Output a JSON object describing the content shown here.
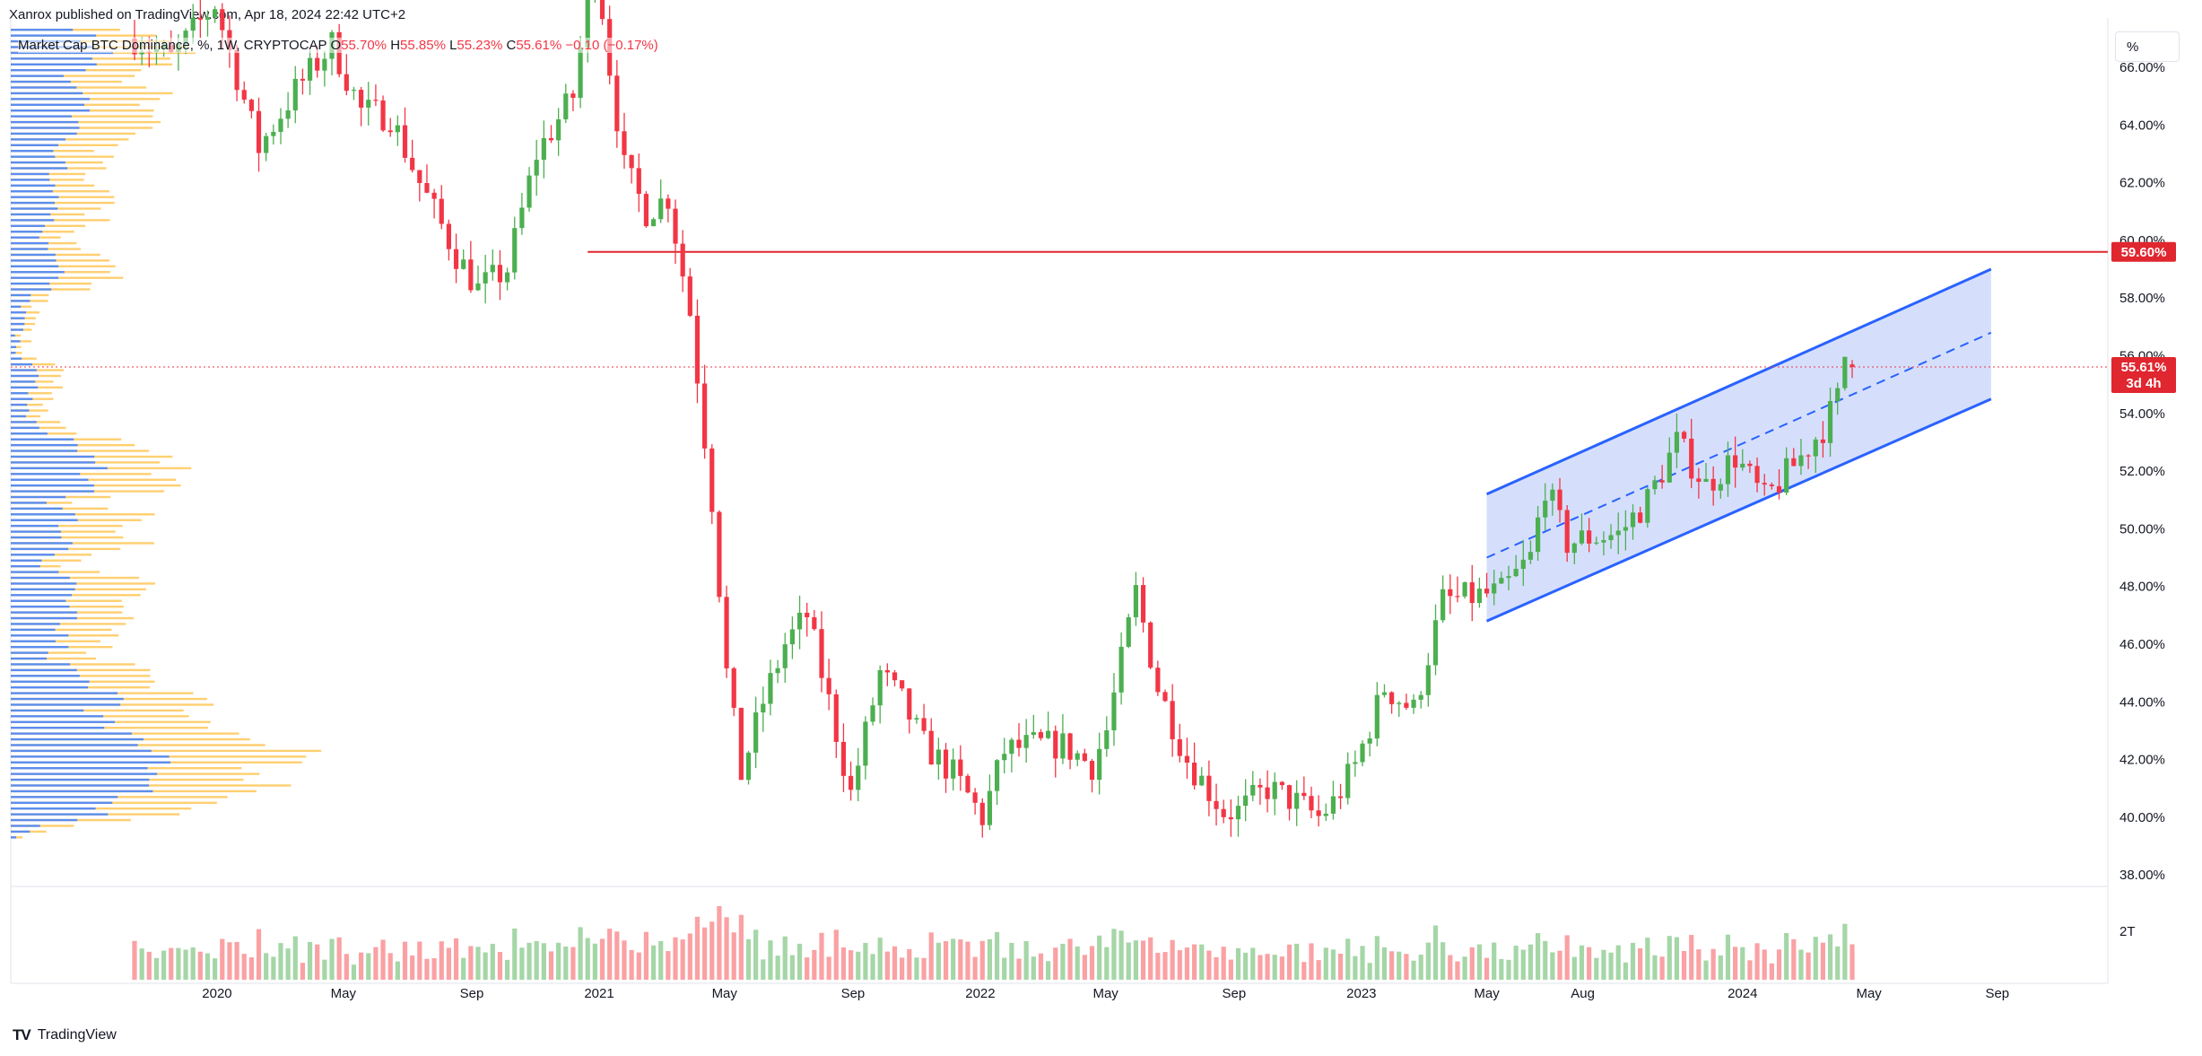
{
  "header": {
    "publisher": "Xanrox published on TradingView.com, Apr 18, 2024 22:42 UTC+2"
  },
  "legend": {
    "symbol": "Market Cap BTC Dominance, %, 1W, CRYPTOCAP",
    "o_label": "O",
    "o_value": "55.70%",
    "h_label": "H",
    "h_value": "55.85%",
    "l_label": "L",
    "l_value": "55.23%",
    "c_label": "C",
    "c_value": "55.61%",
    "change": "−0.10 (−0.17%)"
  },
  "toolbar": {
    "unit_label": "%"
  },
  "footer": {
    "brand": "TradingView",
    "logo_text": "TV"
  },
  "colors": {
    "up": "#4caf50",
    "down": "#f23645",
    "vol_up": "#a5d6a7",
    "vol_down": "#faa1a4",
    "channel": "#2962ff",
    "channel_fill": "#c7d4fb",
    "level_line": "#e0262f",
    "vp_up": "#5b8def",
    "vp_down": "#ffcf70"
  },
  "chart_data": {
    "type": "candlestick",
    "title": "Market Cap BTC Dominance, %, 1W, CRYPTOCAP",
    "ylabel": "%",
    "ylim": [
      37.6,
      67.4
    ],
    "y_ticks": [
      "38.00%",
      "40.00%",
      "42.00%",
      "44.00%",
      "46.00%",
      "48.00%",
      "50.00%",
      "52.00%",
      "54.00%",
      "56.00%",
      "58.00%",
      "60.00%",
      "62.00%",
      "64.00%",
      "66.00%"
    ],
    "x_ticks": [
      "2020",
      "May",
      "Sep",
      "2021",
      "May",
      "Sep",
      "2022",
      "May",
      "Sep",
      "2023",
      "May",
      "Aug",
      "2024",
      "May",
      "Sep"
    ],
    "x_tick_dates": [
      "2020-01-01",
      "2020-05-01",
      "2020-09-01",
      "2021-01-01",
      "2021-05-01",
      "2021-09-01",
      "2022-01-01",
      "2022-05-01",
      "2022-09-01",
      "2023-01-01",
      "2023-05-01",
      "2023-08-01",
      "2024-01-01",
      "2024-05-01",
      "2024-09-01"
    ],
    "date_range": [
      "2019-10-14",
      "2024-04-15"
    ],
    "close_anchors": [
      [
        "2019-10-14",
        67.0
      ],
      [
        "2019-11-18",
        66.3
      ],
      [
        "2019-12-30",
        68.2
      ],
      [
        "2020-02-10",
        63.2
      ],
      [
        "2020-03-16",
        65.2
      ],
      [
        "2020-04-20",
        66.8
      ],
      [
        "2020-05-18",
        64.5
      ],
      [
        "2020-06-15",
        64.3
      ],
      [
        "2020-07-13",
        62.0
      ],
      [
        "2020-08-17",
        59.5
      ],
      [
        "2020-09-07",
        58.3
      ],
      [
        "2020-10-05",
        59.0
      ],
      [
        "2020-11-02",
        63.0
      ],
      [
        "2020-12-07",
        65.0
      ],
      [
        "2020-12-28",
        70.0
      ],
      [
        "2021-01-11",
        66.0
      ],
      [
        "2021-01-25",
        62.5
      ],
      [
        "2021-02-15",
        61.0
      ],
      [
        "2021-03-08",
        61.5
      ],
      [
        "2021-03-29",
        57.5
      ],
      [
        "2021-04-19",
        51.0
      ],
      [
        "2021-05-03",
        45.0
      ],
      [
        "2021-05-17",
        41.5
      ],
      [
        "2021-06-07",
        44.0
      ],
      [
        "2021-06-28",
        46.0
      ],
      [
        "2021-07-19",
        47.0
      ],
      [
        "2021-08-09",
        44.0
      ],
      [
        "2021-08-30",
        40.8
      ],
      [
        "2021-09-27",
        45.0
      ],
      [
        "2021-10-18",
        44.0
      ],
      [
        "2021-11-08",
        42.5
      ],
      [
        "2021-12-06",
        41.5
      ],
      [
        "2022-01-03",
        40.0
      ],
      [
        "2022-01-24",
        42.3
      ],
      [
        "2022-02-21",
        42.5
      ],
      [
        "2022-03-21",
        42.5
      ],
      [
        "2022-04-18",
        41.8
      ],
      [
        "2022-05-02",
        43.0
      ],
      [
        "2022-05-30",
        47.8
      ],
      [
        "2022-06-20",
        44.5
      ],
      [
        "2022-07-18",
        42.0
      ],
      [
        "2022-08-22",
        40.2
      ],
      [
        "2022-09-05",
        40.2
      ],
      [
        "2022-10-03",
        41.0
      ],
      [
        "2022-10-31",
        40.5
      ],
      [
        "2022-11-21",
        40.0
      ],
      [
        "2022-12-05",
        40.5
      ],
      [
        "2022-12-26",
        41.8
      ],
      [
        "2023-01-23",
        44.5
      ],
      [
        "2023-02-20",
        43.7
      ],
      [
        "2023-03-20",
        47.5
      ],
      [
        "2023-04-10",
        47.6
      ],
      [
        "2023-05-15",
        47.8
      ],
      [
        "2023-06-12",
        49.0
      ],
      [
        "2023-06-26",
        51.5
      ],
      [
        "2023-07-17",
        49.5
      ],
      [
        "2023-08-07",
        49.7
      ],
      [
        "2023-09-04",
        49.8
      ],
      [
        "2023-10-02",
        51.0
      ],
      [
        "2023-10-30",
        53.0
      ],
      [
        "2023-11-27",
        51.5
      ],
      [
        "2023-12-25",
        52.5
      ],
      [
        "2024-01-22",
        51.0
      ],
      [
        "2024-02-26",
        52.5
      ],
      [
        "2024-03-18",
        53.5
      ],
      [
        "2024-04-01",
        54.5
      ],
      [
        "2024-04-08",
        56.0
      ],
      [
        "2024-04-15",
        55.61
      ]
    ],
    "ohlc_last": {
      "open": 55.7,
      "high": 55.85,
      "low": 55.23,
      "close": 55.61
    },
    "volume_axis_label": "2T",
    "horizontal_level": {
      "value": 59.6,
      "label": "59.60%"
    },
    "price_tag": {
      "value": 55.61,
      "label": "55.61%",
      "countdown": "3d 4h"
    },
    "channel": {
      "start_date": "2023-05-01",
      "end_date": "2024-08-26",
      "upper": [
        51.2,
        59.0
      ],
      "lower": [
        46.8,
        54.5
      ],
      "mid": [
        49.0,
        56.8
      ]
    },
    "grid": false,
    "volume_profile": true
  }
}
